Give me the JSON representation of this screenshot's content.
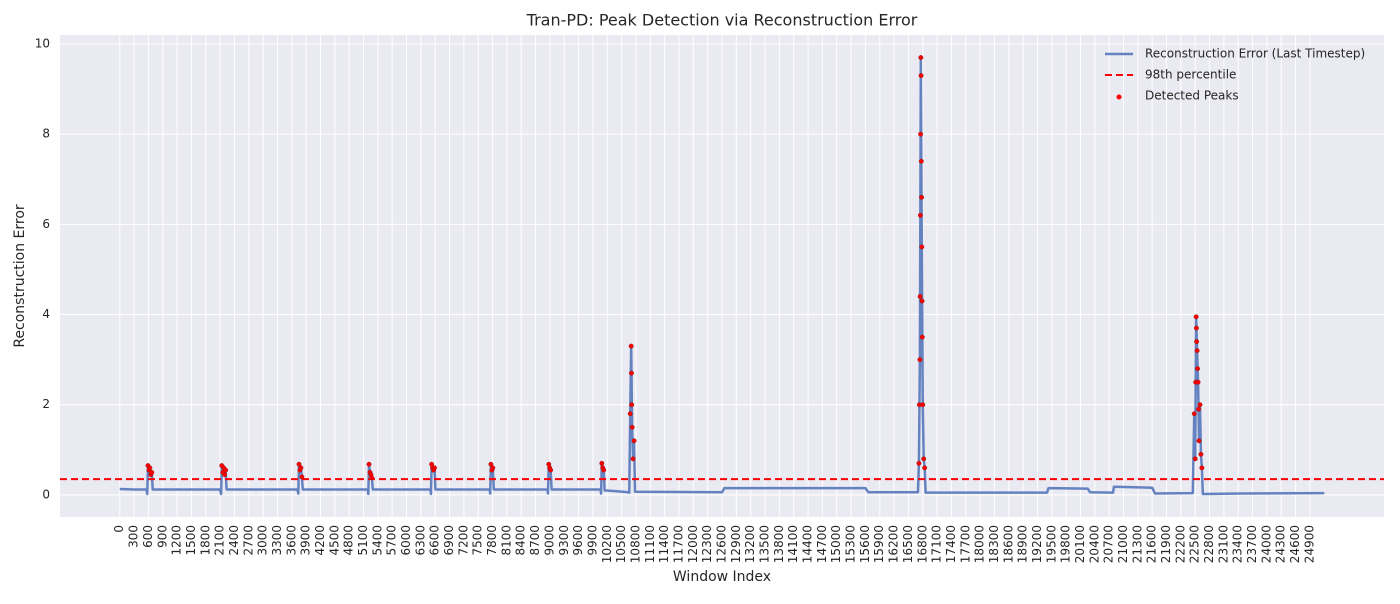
{
  "chart_data": {
    "type": "line",
    "title": "Tran-PD: Peak Detection via Reconstruction Error",
    "xlabel": "Window Index",
    "ylabel": "Reconstruction Error",
    "x": [
      0,
      300,
      560,
      575,
      590,
      610,
      630,
      650,
      670,
      690,
      2100,
      2120,
      2135,
      2155,
      2175,
      2195,
      2215,
      2235,
      3720,
      3735,
      3750,
      3770,
      3790,
      3810,
      3830,
      5190,
      5200,
      5215,
      5235,
      5255,
      5275,
      5295,
      6500,
      6510,
      6525,
      6545,
      6565,
      6585,
      6605,
      7740,
      7750,
      7765,
      7785,
      7805,
      7825,
      8950,
      8960,
      8975,
      8995,
      9015,
      9035,
      10060,
      10070,
      10085,
      10105,
      10125,
      10145,
      10400,
      10640,
      10660,
      10680,
      10700,
      10720,
      10740,
      10760,
      10780,
      12600,
      12650,
      15600,
      15660,
      16700,
      16720,
      16740,
      16760,
      16780,
      16800,
      16820,
      16840,
      16860,
      19400,
      19430,
      20250,
      20300,
      20780,
      20800,
      21600,
      21660,
      22450,
      22480,
      22500,
      22520,
      22540,
      22560,
      22580,
      22600,
      22620,
      22640,
      22660,
      23500,
      25200
    ],
    "series": [
      {
        "name": "Reconstruction Error (Last Timestep)",
        "color": "#6482c0",
        "values": [
          0.13,
          0.12,
          0.12,
          0.02,
          0.65,
          0.55,
          0.6,
          0.45,
          0.5,
          0.12,
          0.12,
          0.02,
          0.65,
          0.5,
          0.6,
          0.45,
          0.55,
          0.12,
          0.12,
          0.03,
          0.68,
          0.55,
          0.6,
          0.4,
          0.12,
          0.12,
          0.02,
          0.68,
          0.5,
          0.45,
          0.38,
          0.12,
          0.12,
          0.02,
          0.68,
          0.6,
          0.55,
          0.6,
          0.12,
          0.12,
          0.03,
          0.68,
          0.55,
          0.6,
          0.12,
          0.12,
          0.03,
          0.68,
          0.6,
          0.55,
          0.12,
          0.12,
          0.03,
          0.7,
          0.6,
          0.55,
          0.1,
          0.08,
          0.06,
          0.05,
          1.8,
          3.3,
          1.5,
          0.8,
          1.2,
          0.07,
          0.06,
          0.15,
          0.15,
          0.06,
          0.06,
          0.7,
          3.0,
          9.7,
          5.5,
          2.0,
          0.8,
          0.6,
          0.05,
          0.05,
          0.15,
          0.14,
          0.06,
          0.05,
          0.18,
          0.16,
          0.03,
          0.04,
          1.8,
          0.8,
          3.95,
          3.2,
          2.5,
          1.2,
          2.0,
          0.9,
          0.6,
          0.02,
          0.03,
          0.04
        ]
      }
    ],
    "threshold": {
      "name": "98th percentile",
      "value": 0.35,
      "color": "#ff0000"
    },
    "peaks": {
      "name": "Detected Peaks",
      "color": "#ff0000",
      "x": [
        590,
        610,
        630,
        650,
        670,
        2135,
        2155,
        2175,
        2195,
        2215,
        3750,
        3770,
        3790,
        3810,
        5215,
        5235,
        5255,
        5275,
        6525,
        6545,
        6565,
        6585,
        7765,
        7785,
        7805,
        8975,
        8995,
        9015,
        10085,
        10105,
        10125,
        10680,
        10700,
        10705,
        10710,
        10720,
        10740,
        10760,
        16720,
        16730,
        16740,
        16745,
        16750,
        16755,
        16760,
        16765,
        16770,
        16775,
        16780,
        16785,
        16790,
        16800,
        16820,
        16840,
        22480,
        22500,
        22510,
        22520,
        22525,
        22530,
        22540,
        22550,
        22560,
        22570,
        22580,
        22600,
        22620,
        22640
      ],
      "values": [
        0.65,
        0.55,
        0.6,
        0.45,
        0.5,
        0.65,
        0.5,
        0.6,
        0.45,
        0.55,
        0.68,
        0.55,
        0.6,
        0.4,
        0.68,
        0.5,
        0.45,
        0.38,
        0.68,
        0.6,
        0.55,
        0.6,
        0.68,
        0.55,
        0.6,
        0.68,
        0.6,
        0.55,
        0.7,
        0.6,
        0.55,
        1.8,
        3.3,
        2.7,
        2.0,
        1.5,
        0.8,
        1.2,
        0.7,
        2.0,
        3.0,
        4.4,
        6.2,
        8.0,
        9.7,
        9.3,
        7.4,
        6.6,
        5.5,
        4.3,
        3.5,
        2.0,
        0.8,
        0.6,
        1.8,
        0.8,
        2.5,
        3.95,
        3.7,
        3.4,
        3.2,
        2.8,
        2.5,
        1.9,
        1.2,
        2.0,
        0.9,
        0.6
      ]
    },
    "xlim": [
      -1250,
      26450
    ],
    "ylim": [
      -0.49,
      10.2
    ],
    "xticks": [
      0,
      300,
      600,
      900,
      1200,
      1500,
      1800,
      2100,
      2400,
      2700,
      3000,
      3300,
      3600,
      3900,
      4200,
      4500,
      4800,
      5100,
      5400,
      5700,
      6000,
      6300,
      6600,
      6900,
      7200,
      7500,
      7800,
      8100,
      8400,
      8700,
      9000,
      9300,
      9600,
      9900,
      10200,
      10500,
      10800,
      11100,
      11400,
      11700,
      12000,
      12300,
      12600,
      12900,
      13200,
      13500,
      13800,
      14100,
      14400,
      14700,
      15000,
      15300,
      15600,
      15900,
      16200,
      16500,
      16800,
      17100,
      17400,
      17700,
      18000,
      18300,
      18600,
      18900,
      19200,
      19500,
      19800,
      20100,
      20400,
      20700,
      21000,
      21300,
      21600,
      21900,
      22200,
      22500,
      22800,
      23100,
      23400,
      23700,
      24000,
      24300,
      24600,
      24900
    ],
    "yticks": [
      0,
      2,
      4,
      6,
      8,
      10
    ],
    "grid": true,
    "legend": "upper right"
  }
}
